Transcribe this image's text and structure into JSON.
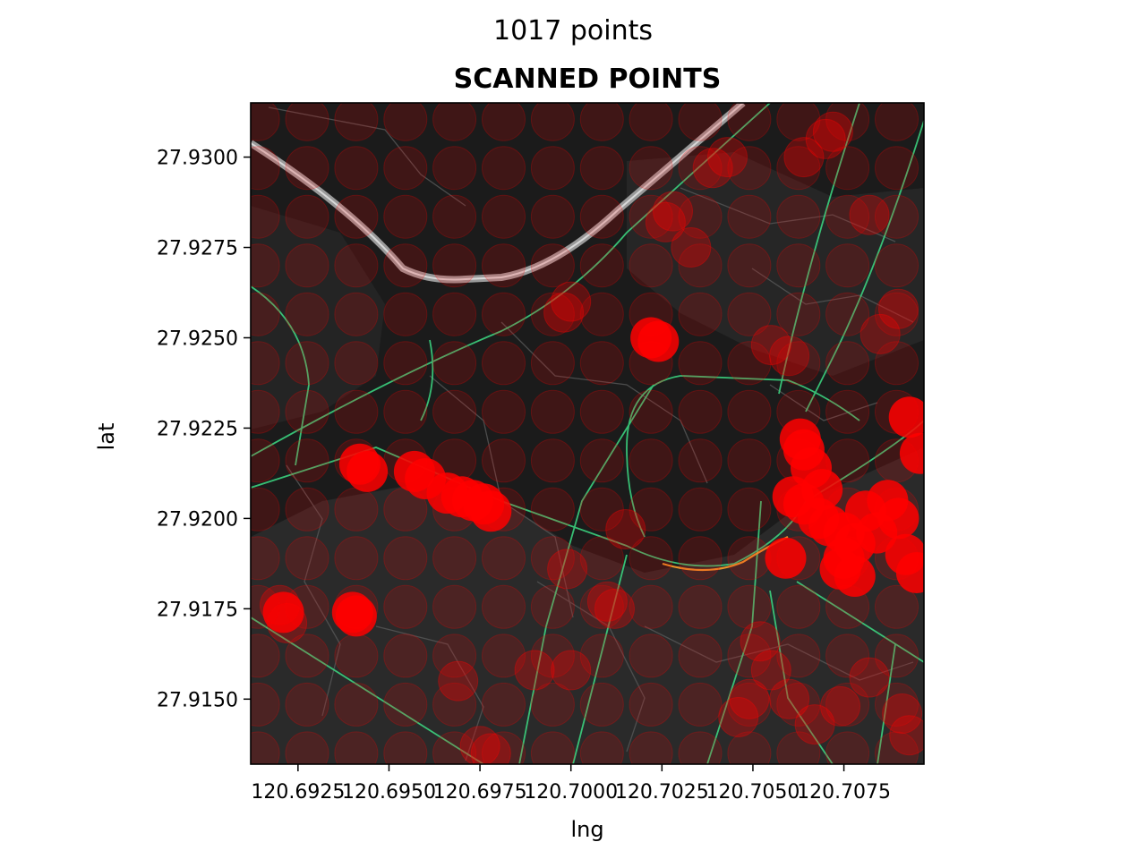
{
  "suptitle": "1017 points",
  "chart_data": {
    "type": "scatter",
    "title": "SCANNED POINTS",
    "xlabel": "lng",
    "ylabel": "lat",
    "xlim": [
      120.6912,
      120.7097
    ],
    "ylim": [
      27.9132,
      27.9315
    ],
    "xticks": [
      120.6925,
      120.695,
      120.6975,
      120.7,
      120.7025,
      120.705,
      120.7075
    ],
    "xtick_labels": [
      "120.6925",
      "120.6950",
      "120.6975",
      "120.7000",
      "120.7025",
      "120.7050",
      "120.7075"
    ],
    "yticks": [
      27.915,
      27.9175,
      27.92,
      27.9225,
      27.925,
      27.9275,
      27.93
    ],
    "ytick_labels": [
      "27.9150",
      "27.9175",
      "27.9200",
      "27.9225",
      "27.9250",
      "27.9275",
      "27.9300"
    ],
    "marker_color": "#ff0000",
    "background": "dark street map",
    "grid": false,
    "dense_points": [
      [
        120.6942,
        27.9215
      ],
      [
        120.6944,
        27.9213
      ],
      [
        120.6957,
        27.9213
      ],
      [
        120.696,
        27.9211
      ],
      [
        120.6966,
        27.9207
      ],
      [
        120.697,
        27.9206
      ],
      [
        120.6973,
        27.9205
      ],
      [
        120.6976,
        27.9204
      ],
      [
        120.6978,
        27.9202
      ],
      [
        120.694,
        27.9174
      ],
      [
        120.6941,
        27.9173
      ],
      [
        120.6921,
        27.9174
      ],
      [
        120.7022,
        27.925
      ],
      [
        120.7024,
        27.9249
      ],
      [
        120.7063,
        27.9222
      ],
      [
        120.7064,
        27.9219
      ],
      [
        120.7066,
        27.9214
      ],
      [
        120.7061,
        27.9206
      ],
      [
        120.7064,
        27.9204
      ],
      [
        120.7068,
        27.92
      ],
      [
        120.7071,
        27.9198
      ],
      [
        120.7075,
        27.9196
      ],
      [
        120.7078,
        27.9193
      ],
      [
        120.7075,
        27.9189
      ],
      [
        120.7074,
        27.9186
      ],
      [
        120.7078,
        27.9184
      ],
      [
        120.7059,
        27.9189
      ],
      [
        120.7087,
        27.9205
      ],
      [
        120.709,
        27.92
      ],
      [
        120.7092,
        27.919
      ],
      [
        120.7095,
        27.9185
      ],
      [
        120.7096,
        27.9218
      ],
      [
        120.7093,
        27.9228
      ],
      [
        120.7084,
        27.9196
      ],
      [
        120.7069,
        27.9208
      ],
      [
        120.7081,
        27.9202
      ]
    ],
    "cluster_points": [
      [
        120.6975,
        27.9137
      ],
      [
        120.6978,
        27.9135
      ],
      [
        120.699,
        27.9158
      ],
      [
        120.7,
        27.9158
      ],
      [
        120.701,
        27.9177
      ],
      [
        120.7012,
        27.9175
      ],
      [
        120.7015,
        27.9197
      ],
      [
        120.6999,
        27.9186
      ],
      [
        120.7052,
        27.9166
      ],
      [
        120.7055,
        27.9158
      ],
      [
        120.7049,
        27.915
      ],
      [
        120.7046,
        27.9145
      ],
      [
        120.706,
        27.915
      ],
      [
        120.7067,
        27.9143
      ],
      [
        120.7074,
        27.9148
      ],
      [
        120.7082,
        27.9156
      ],
      [
        120.7091,
        27.9146
      ],
      [
        120.7093,
        27.914
      ],
      [
        120.707,
        27.9305
      ],
      [
        120.7072,
        27.9307
      ],
      [
        120.7064,
        27.93
      ],
      [
        120.7082,
        27.9284
      ],
      [
        120.7085,
        27.9251
      ],
      [
        120.709,
        27.9258
      ],
      [
        120.7028,
        27.9285
      ],
      [
        120.7033,
        27.9275
      ],
      [
        120.706,
        27.9245
      ],
      [
        120.7055,
        27.9248
      ],
      [
        120.692,
        27.9176
      ],
      [
        120.6922,
        27.9171
      ],
      [
        120.7,
        27.926
      ],
      [
        120.6998,
        27.9257
      ],
      [
        120.7039,
        27.9297
      ],
      [
        120.7043,
        27.93
      ],
      [
        120.7026,
        27.9282
      ],
      [
        120.6969,
        27.9155
      ]
    ]
  }
}
